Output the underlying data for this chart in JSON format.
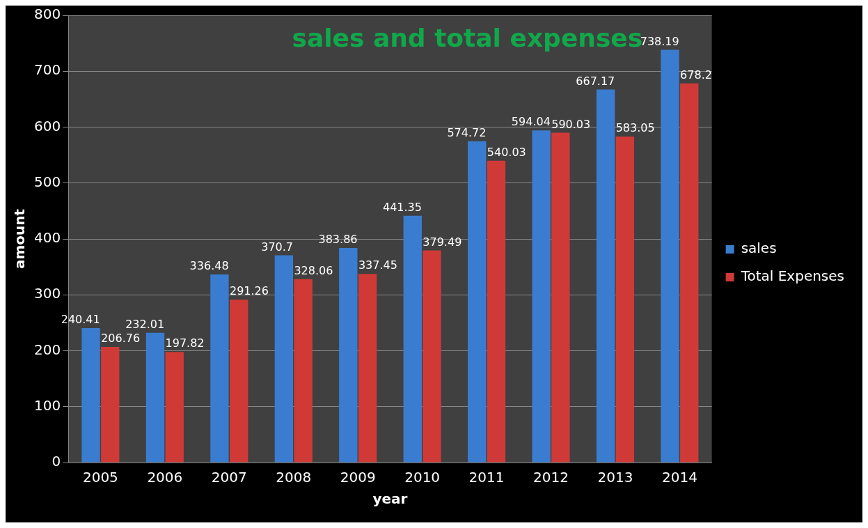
{
  "chart_data": {
    "type": "bar",
    "title": "sales and total expenses",
    "xlabel": "year",
    "ylabel": "amount",
    "categories": [
      "2005",
      "2006",
      "2007",
      "2008",
      "2009",
      "2010",
      "2011",
      "2012",
      "2013",
      "2014"
    ],
    "series": [
      {
        "name": "sales",
        "color": "#3a7dd0",
        "values": [
          240.41,
          232.01,
          336.48,
          370.7,
          383.86,
          441.35,
          574.72,
          594.04,
          667.17,
          738.19
        ]
      },
      {
        "name": "Total Expenses",
        "color": "#d03a36",
        "values": [
          206.76,
          197.82,
          291.26,
          328.06,
          337.45,
          379.49,
          540.03,
          590.03,
          583.05,
          678.2
        ]
      }
    ],
    "ylim": [
      0,
      800
    ],
    "yticks": [
      0,
      100,
      200,
      300,
      400,
      500,
      600,
      700,
      800
    ],
    "grid": "y",
    "legend": "right",
    "data_labels": true
  }
}
